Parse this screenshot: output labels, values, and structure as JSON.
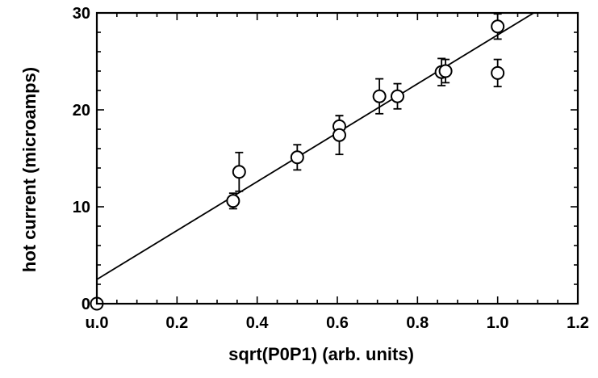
{
  "chart_data": {
    "type": "scatter",
    "title": "",
    "xlabel": "sqrt(P0P1) (arb. units)",
    "ylabel": "hot current (microamps)",
    "xlim": [
      0.0,
      1.2
    ],
    "ylim": [
      0,
      30
    ],
    "x_ticks": [
      0.0,
      0.2,
      0.4,
      0.6,
      0.8,
      1.0,
      1.2
    ],
    "x_tick_labels": [
      "u.0",
      "0.2",
      "0.4",
      "0.6",
      "0.8",
      "1.0",
      "1.2"
    ],
    "y_ticks": [
      0,
      10,
      20,
      30
    ],
    "y_tick_labels": [
      "0",
      "10",
      "20",
      "30"
    ],
    "grid": false,
    "legend": "none",
    "colors": {
      "ink": "#000000",
      "background": "#ffffff"
    },
    "series": [
      {
        "marker": "open-circle",
        "points": [
          {
            "x": 0.0,
            "y": 0.0,
            "err": 0.0
          },
          {
            "x": 0.34,
            "y": 10.6,
            "err": 0.8
          },
          {
            "x": 0.355,
            "y": 13.6,
            "err": 2.0
          },
          {
            "x": 0.5,
            "y": 15.1,
            "err": 1.3
          },
          {
            "x": 0.605,
            "y": 18.3,
            "err": 1.1
          },
          {
            "x": 0.605,
            "y": 17.4,
            "err": 2.0
          },
          {
            "x": 0.705,
            "y": 21.4,
            "err": 1.8
          },
          {
            "x": 0.75,
            "y": 21.4,
            "err": 1.3
          },
          {
            "x": 0.86,
            "y": 23.9,
            "err": 1.4
          },
          {
            "x": 0.87,
            "y": 24.0,
            "err": 1.2
          },
          {
            "x": 1.0,
            "y": 28.6,
            "err": 1.3
          },
          {
            "x": 1.0,
            "y": 23.8,
            "err": 1.4
          }
        ]
      }
    ],
    "fit_line": {
      "x": [
        0.0,
        1.09
      ],
      "y": [
        2.5,
        30.0
      ]
    }
  }
}
